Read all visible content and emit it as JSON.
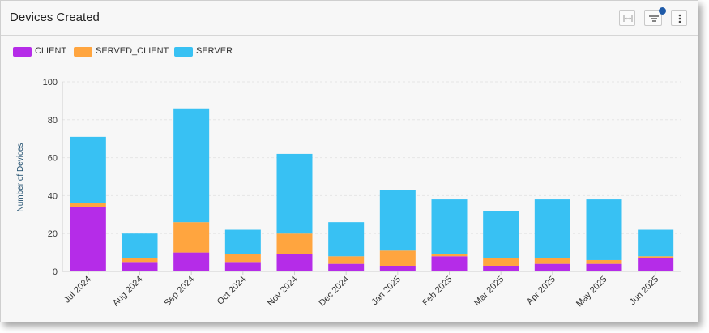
{
  "header": {
    "title": "Devices Created",
    "toolbar": [
      {
        "icon": "fit-width-icon"
      },
      {
        "icon": "filter-icon",
        "badge": true
      },
      {
        "icon": "more-vertical-icon"
      }
    ]
  },
  "colors": {
    "client": "#b52ce8",
    "served_client": "#ffa53f",
    "server": "#38c1f3",
    "badge": "#1e5aa8"
  },
  "chart_data": {
    "type": "bar",
    "stacked": true,
    "ylabel": "Number of Devices",
    "xlabel": "",
    "ylim": [
      0,
      100
    ],
    "yticks": [
      0,
      20,
      40,
      60,
      80,
      100
    ],
    "grid": true,
    "legend_position": "top-left",
    "categories": [
      "Jul 2024",
      "Aug 2024",
      "Sep 2024",
      "Oct 2024",
      "Nov 2024",
      "Dec 2024",
      "Jan 2025",
      "Feb 2025",
      "Mar 2025",
      "Apr 2025",
      "May 2025",
      "Jun 2025"
    ],
    "series": [
      {
        "name": "CLIENT",
        "color": "#b52ce8",
        "values": [
          34,
          5,
          10,
          5,
          9,
          4,
          3,
          8,
          3,
          4,
          4,
          7
        ]
      },
      {
        "name": "SERVED_CLIENT",
        "color": "#ffa53f",
        "values": [
          2,
          2,
          16,
          4,
          11,
          4,
          8,
          1,
          4,
          3,
          2,
          1
        ]
      },
      {
        "name": "SERVER",
        "color": "#38c1f3",
        "values": [
          35,
          13,
          60,
          13,
          42,
          18,
          32,
          29,
          25,
          31,
          32,
          14
        ]
      }
    ]
  }
}
